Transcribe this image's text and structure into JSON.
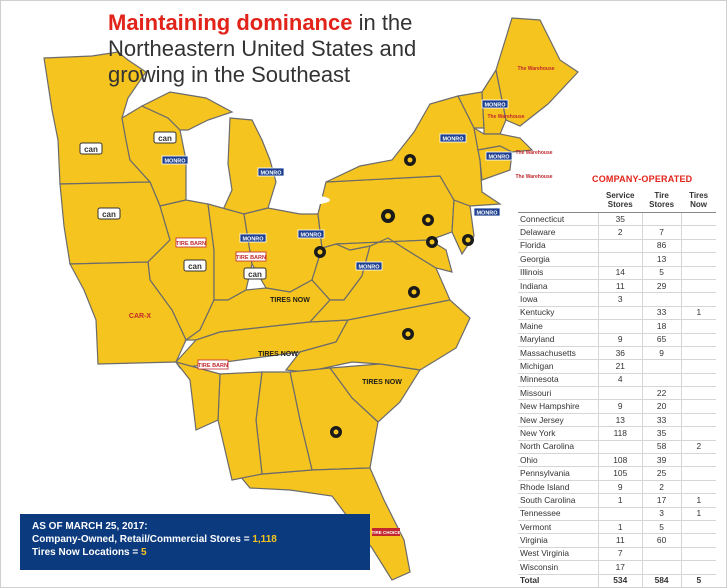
{
  "headline": {
    "accent": "Maintaining dominance",
    "rest": " in the Northeastern United States and growing in the Southeast"
  },
  "logos": {
    "can": "can",
    "monro": "MONRO",
    "tire_barn": "TIRE BARN",
    "tires_now": "TIRES NOW",
    "mr_tire": "MR TIRE",
    "tire_warehouse": "The Warehouse",
    "car_x": "CAR-X",
    "tire_choice": "TIRE CHOICE"
  },
  "table": {
    "title": "COMPANY-OPERATED",
    "headers": [
      "",
      "Service Stores",
      "Tire Stores",
      "Tires Now"
    ],
    "rows": [
      [
        "Connecticut",
        "35",
        "",
        ""
      ],
      [
        "Delaware",
        "2",
        "7",
        ""
      ],
      [
        "Florida",
        "",
        "86",
        ""
      ],
      [
        "Georgia",
        "",
        "13",
        ""
      ],
      [
        "Illinois",
        "14",
        "5",
        ""
      ],
      [
        "Indiana",
        "11",
        "29",
        ""
      ],
      [
        "Iowa",
        "3",
        "",
        ""
      ],
      [
        "Kentucky",
        "",
        "33",
        "1"
      ],
      [
        "Maine",
        "",
        "18",
        ""
      ],
      [
        "Maryland",
        "9",
        "65",
        ""
      ],
      [
        "Massachusetts",
        "36",
        "9",
        ""
      ],
      [
        "Michigan",
        "21",
        "",
        ""
      ],
      [
        "Minnesota",
        "4",
        "",
        ""
      ],
      [
        "Missouri",
        "",
        "22",
        ""
      ],
      [
        "New Hampshire",
        "9",
        "20",
        ""
      ],
      [
        "New Jersey",
        "13",
        "33",
        ""
      ],
      [
        "New York",
        "118",
        "35",
        ""
      ],
      [
        "North Carolina",
        "",
        "58",
        "2"
      ],
      [
        "Ohio",
        "108",
        "39",
        ""
      ],
      [
        "Pennsylvania",
        "105",
        "25",
        ""
      ],
      [
        "Rhode Island",
        "9",
        "2",
        ""
      ],
      [
        "South Carolina",
        "1",
        "17",
        "1"
      ],
      [
        "Tennessee",
        "",
        "3",
        "1"
      ],
      [
        "Vermont",
        "1",
        "5",
        ""
      ],
      [
        "Virginia",
        "11",
        "60",
        ""
      ],
      [
        "West Virginia",
        "7",
        "",
        ""
      ],
      [
        "Wisconsin",
        "17",
        "",
        ""
      ]
    ],
    "total": [
      "Total",
      "534",
      "584",
      "5"
    ]
  },
  "banner": {
    "line1": "AS OF MARCH 25, 2017:",
    "line2_label": "Company-Owned, Retail/Commercial Stores = ",
    "line2_value": "1,118",
    "line3_label": "Tires Now Locations = ",
    "line3_value": "5"
  },
  "colors": {
    "state_fill": "#f6c41e",
    "accent_red": "#e2231a",
    "banner_blue": "#0b3a7e"
  }
}
